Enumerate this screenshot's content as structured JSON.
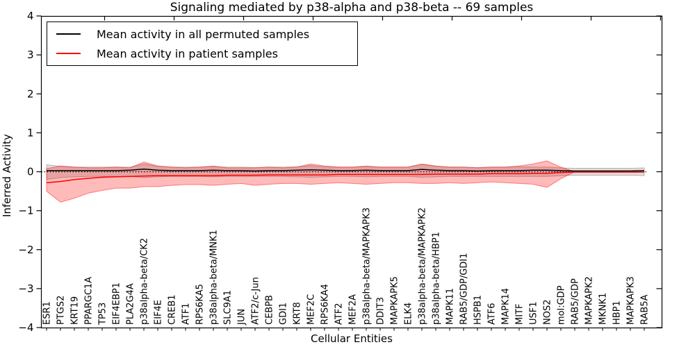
{
  "chart_data": {
    "type": "line",
    "title": "Signaling mediated by p38-alpha and p38-beta -- 69 samples",
    "xlabel": "Cellular Entities",
    "ylabel": "Inferred Activity",
    "ylim": [
      -4,
      4
    ],
    "yticks": [
      4,
      3,
      2,
      1,
      0,
      -1,
      -2,
      -3,
      -4
    ],
    "grid": false,
    "legend_position": "upper left",
    "zero_line": true,
    "categories": [
      "ESR1",
      "PTGS2",
      "KRT19",
      "PPARGC1A",
      "TP53",
      "EIF4EBP1",
      "PLA2G4A",
      "p38alpha-beta/CK2",
      "EIF4E",
      "CREB1",
      "ATF1",
      "RPS6KA5",
      "p38alpha-beta/MNK1",
      "SLC9A1",
      "JUN",
      "ATF2/c-Jun",
      "CEBPB",
      "GDI1",
      "KRT8",
      "MEF2C",
      "RPS6KA4",
      "ATF2",
      "MEF2A",
      "p38alpha-beta/MAPKAPK3",
      "DDIT3",
      "MAPKAPK5",
      "ELK4",
      "p38alpha-beta/MAPKAPK2",
      "p38alpha-beta/HBP1",
      "MAPK11",
      "RAB5/GDP/GDI1",
      "HSPB1",
      "ATF6",
      "MAPK14",
      "MITF",
      "USF1",
      "NOS2",
      "mol:GDP",
      "RAB5/GDP",
      "MAPKAPK2",
      "MKNK1",
      "HBP1",
      "MAPKAPK3",
      "RAB5A"
    ],
    "series": [
      {
        "id": "permuted-mean",
        "name": "Mean activity in all permuted samples",
        "color": "#000000",
        "values": [
          0.03,
          0.03,
          0.03,
          0.03,
          0.03,
          0.03,
          0.04,
          0.07,
          0.04,
          0.03,
          0.03,
          0.03,
          0.04,
          0.03,
          0.03,
          0.02,
          0.03,
          0.03,
          0.04,
          0.05,
          0.04,
          0.03,
          0.03,
          0.04,
          0.03,
          0.03,
          0.03,
          0.06,
          0.04,
          0.03,
          0.03,
          0.02,
          0.03,
          0.03,
          0.03,
          0.04,
          0.04,
          0.03,
          0.02,
          0.02,
          0.02,
          0.02,
          0.02,
          0.03
        ]
      },
      {
        "id": "patient-mean",
        "name": "Mean activity in patient samples",
        "color": "#ff0000",
        "values": [
          -0.28,
          -0.25,
          -0.2,
          -0.17,
          -0.14,
          -0.13,
          -0.12,
          -0.11,
          -0.1,
          -0.1,
          -0.1,
          -0.1,
          -0.1,
          -0.09,
          -0.09,
          -0.09,
          -0.08,
          -0.08,
          -0.08,
          -0.08,
          -0.08,
          -0.07,
          -0.07,
          -0.07,
          -0.07,
          -0.07,
          -0.07,
          -0.07,
          -0.06,
          -0.06,
          -0.06,
          -0.06,
          -0.05,
          -0.05,
          -0.05,
          -0.04,
          -0.04,
          -0.02,
          -0.01,
          -0.01,
          -0.01,
          -0.01,
          -0.01,
          -0.01
        ]
      }
    ],
    "bands": [
      {
        "id": "permuted-range",
        "fill": "rgba(0,0,0,0.13)",
        "edge": "rgba(0,0,0,0.25)",
        "upper": [
          0.18,
          0.14,
          0.12,
          0.12,
          0.12,
          0.12,
          0.12,
          0.2,
          0.14,
          0.12,
          0.12,
          0.12,
          0.13,
          0.12,
          0.12,
          0.11,
          0.12,
          0.12,
          0.13,
          0.16,
          0.13,
          0.12,
          0.12,
          0.13,
          0.12,
          0.12,
          0.12,
          0.19,
          0.14,
          0.12,
          0.12,
          0.11,
          0.12,
          0.12,
          0.13,
          0.12,
          0.12,
          0.1,
          0.09,
          0.09,
          0.09,
          0.09,
          0.09,
          0.1
        ],
        "lower": [
          -0.2,
          -0.15,
          -0.13,
          -0.12,
          -0.12,
          -0.12,
          -0.12,
          -0.15,
          -0.13,
          -0.12,
          -0.12,
          -0.12,
          -0.13,
          -0.12,
          -0.12,
          -0.12,
          -0.12,
          -0.12,
          -0.13,
          -0.14,
          -0.13,
          -0.12,
          -0.12,
          -0.13,
          -0.12,
          -0.12,
          -0.12,
          -0.14,
          -0.13,
          -0.12,
          -0.12,
          -0.12,
          -0.12,
          -0.12,
          -0.12,
          -0.12,
          -0.12,
          -0.1,
          -0.09,
          -0.09,
          -0.09,
          -0.09,
          -0.09,
          -0.1
        ]
      },
      {
        "id": "patient-range",
        "fill": "rgba(255,0,0,0.27)",
        "edge": "rgba(255,0,0,0.45)",
        "upper": [
          0.08,
          0.15,
          0.12,
          0.1,
          0.1,
          0.12,
          0.1,
          0.25,
          0.15,
          0.12,
          0.1,
          0.12,
          0.15,
          0.1,
          0.1,
          0.1,
          0.12,
          0.1,
          0.12,
          0.2,
          0.15,
          0.12,
          0.12,
          0.15,
          0.12,
          0.12,
          0.12,
          0.2,
          0.15,
          0.12,
          0.12,
          0.1,
          0.12,
          0.12,
          0.15,
          0.2,
          0.28,
          0.12,
          0.0,
          0.0,
          0.0,
          0.0,
          0.0,
          0.0
        ],
        "lower": [
          -0.5,
          -0.78,
          -0.68,
          -0.55,
          -0.48,
          -0.42,
          -0.42,
          -0.38,
          -0.38,
          -0.35,
          -0.33,
          -0.33,
          -0.35,
          -0.32,
          -0.3,
          -0.35,
          -0.32,
          -0.3,
          -0.3,
          -0.32,
          -0.3,
          -0.28,
          -0.3,
          -0.32,
          -0.3,
          -0.28,
          -0.28,
          -0.3,
          -0.3,
          -0.28,
          -0.3,
          -0.28,
          -0.26,
          -0.28,
          -0.3,
          -0.32,
          -0.4,
          -0.18,
          0.0,
          0.0,
          0.0,
          0.0,
          0.0,
          0.0
        ]
      }
    ]
  }
}
